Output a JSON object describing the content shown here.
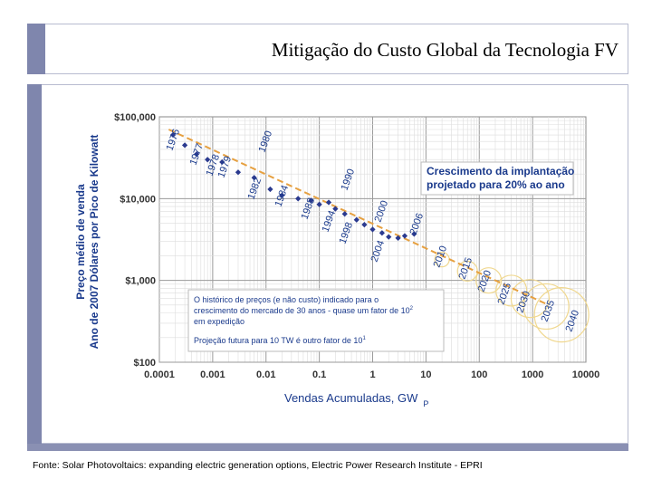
{
  "header": {
    "title": "Mitigação do Custo Global da Tecnologia FV"
  },
  "footer": {
    "source": "Fonte: Solar Photovoltaics: expanding electric generation options, Electric Power Research Institute - EPRI"
  },
  "chart_data": {
    "type": "scatter",
    "xscale": "log",
    "yscale": "log",
    "xlim": [
      0.0001,
      10000
    ],
    "ylim": [
      100,
      100000
    ],
    "x_ticks": [
      "0.0001",
      "0.001",
      "0.01",
      "0.1",
      "1",
      "10",
      "100",
      "1000",
      "10000"
    ],
    "y_ticks": [
      "$100",
      "$1,000",
      "$10,000",
      "$100,000"
    ],
    "xlabel": "Vendas Acumuladas, GW",
    "xlabel_suffix": "P",
    "ylabel_line1": "Preço médio de venda",
    "ylabel_line2": "Ano de 2007 Dólares por Pico de Kilowatt",
    "grid": true,
    "historical": {
      "labels": [
        "1976",
        "1977",
        "1978",
        "1979",
        "1980",
        "1982",
        "1984",
        "1988",
        "1990",
        "1994",
        "1998",
        "2000",
        "2004",
        "2006"
      ],
      "points": [
        {
          "x": 0.00018,
          "y": 60000
        },
        {
          "x": 0.0003,
          "y": 45000
        },
        {
          "x": 0.0005,
          "y": 35000
        },
        {
          "x": 0.0008,
          "y": 30000
        },
        {
          "x": 0.0015,
          "y": 28000
        },
        {
          "x": 0.003,
          "y": 21000
        },
        {
          "x": 0.006,
          "y": 18000
        },
        {
          "x": 0.012,
          "y": 13000
        },
        {
          "x": 0.02,
          "y": 11000
        },
        {
          "x": 0.04,
          "y": 10000
        },
        {
          "x": 0.07,
          "y": 9500
        },
        {
          "x": 0.1,
          "y": 8500
        },
        {
          "x": 0.15,
          "y": 9000
        },
        {
          "x": 0.2,
          "y": 7500
        },
        {
          "x": 0.3,
          "y": 6500
        },
        {
          "x": 0.5,
          "y": 5500
        },
        {
          "x": 0.7,
          "y": 4800
        },
        {
          "x": 1.0,
          "y": 4200
        },
        {
          "x": 1.5,
          "y": 3800
        },
        {
          "x": 2.0,
          "y": 3400
        },
        {
          "x": 3.0,
          "y": 3300
        },
        {
          "x": 4.0,
          "y": 3500
        },
        {
          "x": 6.0,
          "y": 3700
        }
      ]
    },
    "projection": {
      "labels": [
        "2010",
        "2015",
        "2020",
        "2025",
        "2030",
        "2035",
        "2040"
      ],
      "trend": [
        {
          "x": 0.00015,
          "y": 70000
        },
        {
          "x": 2000,
          "y": 500
        }
      ],
      "circles": [
        {
          "x": 20,
          "y": 1800
        },
        {
          "x": 60,
          "y": 1300
        },
        {
          "x": 150,
          "y": 1000
        },
        {
          "x": 400,
          "y": 750
        },
        {
          "x": 900,
          "y": 600
        },
        {
          "x": 1800,
          "y": 480
        },
        {
          "x": 3500,
          "y": 380
        }
      ]
    },
    "annotation_top": {
      "line1": "Crescimento da implantação",
      "line2": "projetado para 20% ao ano"
    },
    "annotation_bottom": {
      "line1": "O histórico de preços (e não custo) indicado para o",
      "line2": "crescimento do mercado de 30 anos - quase um fator de 10",
      "line2_exp": "2",
      "line3": "em expedição",
      "line4": "Projeção futura para 10 TW é outro fator de 10",
      "line4_exp": "1"
    },
    "colors": {
      "points": "#2b3a8f",
      "trend": "#e6a040",
      "circles": "#f0d890",
      "text": "#1a3a8c"
    }
  }
}
